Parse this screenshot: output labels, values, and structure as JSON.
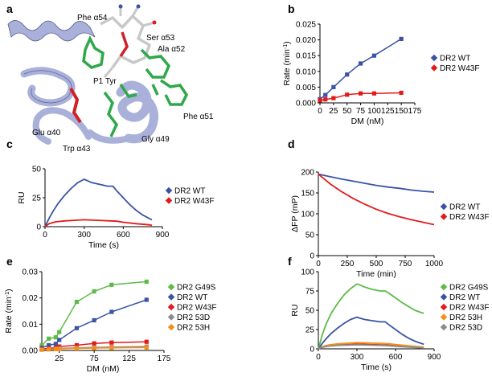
{
  "panel_labels": [
    "a",
    "b",
    "c",
    "d",
    "e",
    "f"
  ],
  "structure": {
    "labels": [
      "Phe α54",
      "Ser α53",
      "Ala α52",
      "P1 Tyr",
      "Glu α40",
      "Trp α43",
      "Gly α49",
      "Phe α51"
    ],
    "colors": {
      "ribbon": "#a9b0da",
      "green": "#2fa84a",
      "red": "#cf2027",
      "grey": "#d3d3d3"
    }
  },
  "chart_data": [
    {
      "id": "b",
      "type": "line",
      "xlabel": "DM (nM)",
      "ylabel": "Rate (min",
      "ylabel_sup": "-1",
      "ylabel_close": ")",
      "xlim": [
        0,
        175
      ],
      "ylim": [
        0,
        0.025
      ],
      "xticks": [
        "0",
        "25",
        "50",
        "75",
        "100",
        "125",
        "150",
        "175"
      ],
      "yticks": [
        "0.000",
        "0.005",
        "0.010",
        "0.015",
        "0.020",
        "0.025"
      ],
      "legend_position": "right",
      "series": [
        {
          "name": "DR2 WT",
          "color": "#3a53a4",
          "marker": "square",
          "x": [
            0,
            10,
            25,
            50,
            75,
            100,
            150
          ],
          "y": [
            0.0012,
            0.0025,
            0.005,
            0.009,
            0.0125,
            0.015,
            0.0203
          ]
        },
        {
          "name": "DR2 W43F",
          "color": "#e31a1c",
          "marker": "square",
          "x": [
            0,
            10,
            25,
            50,
            75,
            100,
            150
          ],
          "y": [
            0.0008,
            0.0011,
            0.0015,
            0.0026,
            0.003,
            0.003,
            0.0032
          ]
        }
      ]
    },
    {
      "id": "c",
      "type": "line",
      "xlabel": "Time (s)",
      "ylabel": "RU",
      "xlim": [
        0,
        900
      ],
      "ylim": [
        0,
        50
      ],
      "xticks": [
        "0",
        "300",
        "600",
        "900"
      ],
      "yticks": [
        "0",
        "25",
        "50"
      ],
      "legend_position": "right",
      "series": [
        {
          "name": "DR2 WT",
          "color": "#3a53a4",
          "x": [
            0,
            30,
            60,
            100,
            150,
            200,
            250,
            300,
            320,
            360,
            420,
            480,
            520,
            550,
            600,
            650,
            700,
            750,
            800,
            820
          ],
          "y": [
            0,
            7,
            13,
            20,
            27,
            33,
            38,
            41,
            40,
            38,
            36.5,
            35,
            35,
            31,
            25,
            19,
            14,
            10,
            7,
            6
          ]
        },
        {
          "name": "DR2 W43F",
          "color": "#e31a1c",
          "x": [
            0,
            30,
            80,
            150,
            250,
            300,
            400,
            500,
            550,
            600,
            700,
            800,
            820
          ],
          "y": [
            0,
            2.5,
            4.2,
            5,
            5.6,
            6,
            5.5,
            5,
            4.7,
            3.8,
            2.6,
            1.6,
            1.2
          ]
        }
      ]
    },
    {
      "id": "d",
      "type": "line",
      "xlabel": "Time (min)",
      "ylabel": "ΔFP (mP)",
      "xlim": [
        0,
        1000
      ],
      "ylim": [
        0,
        200
      ],
      "xticks": [
        "0",
        "250",
        "500",
        "750",
        "1000"
      ],
      "yticks": [
        "0",
        "50",
        "100",
        "150",
        "200"
      ],
      "legend_position": "right",
      "series": [
        {
          "name": "DR2 WT",
          "color": "#3a53a4",
          "x": [
            0,
            100,
            200,
            300,
            400,
            500,
            600,
            700,
            800,
            900,
            1000
          ],
          "y": [
            195,
            189,
            183,
            178,
            173,
            168,
            164,
            161,
            157,
            154,
            152
          ]
        },
        {
          "name": "DR2 W43F",
          "color": "#e31a1c",
          "x": [
            0,
            100,
            200,
            300,
            400,
            500,
            600,
            700,
            800,
            900,
            1000
          ],
          "y": [
            195,
            172,
            153,
            137,
            123,
            111,
            101,
            93,
            86,
            80,
            74
          ]
        }
      ]
    },
    {
      "id": "e",
      "type": "line",
      "xlabel": "DM (nM)",
      "ylabel": "Rate (min",
      "ylabel_sup": "-1",
      "ylabel_close": ")",
      "xlim": [
        0,
        175
      ],
      "ylim": [
        0,
        0.03
      ],
      "xticks": [
        "25",
        "75",
        "125",
        "175"
      ],
      "yticks": [
        "0.00",
        "0.01",
        "0.02",
        "0.03"
      ],
      "legend_position": "right",
      "series": [
        {
          "name": "DR2 G49S",
          "color": "#5dbb46",
          "marker": "square",
          "x": [
            0,
            10,
            20,
            25,
            50,
            75,
            100,
            150
          ],
          "y": [
            0.002,
            0.0045,
            0.005,
            0.007,
            0.0185,
            0.0225,
            0.025,
            0.0262
          ]
        },
        {
          "name": "DR2 WT",
          "color": "#3a53a4",
          "marker": "square",
          "x": [
            0,
            10,
            20,
            25,
            50,
            75,
            100,
            150
          ],
          "y": [
            0.001,
            0.002,
            0.0025,
            0.004,
            0.0085,
            0.0115,
            0.0147,
            0.0193
          ]
        },
        {
          "name": "DR2 W43F",
          "color": "#e31a1c",
          "marker": "square",
          "x": [
            0,
            10,
            20,
            25,
            50,
            75,
            100,
            150
          ],
          "y": [
            0.0005,
            0.0009,
            0.001,
            0.0015,
            0.002,
            0.0027,
            0.003,
            0.0033
          ]
        },
        {
          "name": "DR2 53D",
          "color": "#8c8c8c",
          "marker": "square",
          "x": [
            0,
            10,
            20,
            25,
            50,
            75,
            100,
            150
          ],
          "y": [
            0.0003,
            0.0005,
            0.0006,
            0.0008,
            0.001,
            0.0012,
            0.0013,
            0.0015
          ]
        },
        {
          "name": "DR2 53H",
          "color": "#f39019",
          "marker": "square",
          "x": [
            0,
            10,
            20,
            25,
            50,
            75,
            100,
            150
          ],
          "y": [
            0.0003,
            0.0004,
            0.0005,
            0.0006,
            0.0008,
            0.0009,
            0.001,
            0.0011
          ]
        }
      ]
    },
    {
      "id": "f",
      "type": "line",
      "xlabel": "Time (s)",
      "ylabel": "RU",
      "xlim": [
        0,
        900
      ],
      "ylim": [
        0,
        100
      ],
      "xticks": [
        "0",
        "300",
        "600",
        "900"
      ],
      "yticks": [
        "0",
        "25",
        "50",
        "75",
        "100"
      ],
      "legend_position": "right",
      "series": [
        {
          "name": "DR2 G49S",
          "color": "#5dbb46",
          "x": [
            0,
            30,
            60,
            100,
            150,
            200,
            250,
            300,
            320,
            360,
            420,
            480,
            520,
            550,
            600,
            650,
            700,
            750,
            800,
            820
          ],
          "y": [
            0,
            18,
            32,
            46,
            59,
            70,
            78,
            84,
            83,
            80,
            77,
            75,
            75,
            72,
            66,
            60,
            55,
            50,
            47,
            46
          ]
        },
        {
          "name": "DR2 WT",
          "color": "#3a53a4",
          "x": [
            0,
            30,
            60,
            100,
            150,
            200,
            250,
            300,
            320,
            360,
            420,
            480,
            520,
            550,
            600,
            650,
            700,
            750,
            800,
            820
          ],
          "y": [
            0,
            7,
            13,
            20,
            27,
            33,
            38,
            41,
            40,
            38,
            36.5,
            35,
            35,
            31,
            25,
            19,
            14,
            10,
            7,
            6
          ]
        },
        {
          "name": "DR2 W43F",
          "color": "#e31a1c",
          "x": [
            0,
            30,
            80,
            150,
            250,
            300,
            400,
            500,
            550,
            600,
            700,
            800,
            820
          ],
          "y": [
            0,
            2.5,
            4.2,
            5,
            5.6,
            6,
            5.5,
            5,
            4.7,
            3.8,
            2.6,
            1.6,
            1.2
          ]
        },
        {
          "name": "DR2 53H",
          "color": "#f39019",
          "x": [
            0,
            30,
            80,
            150,
            250,
            300,
            400,
            500,
            550,
            600,
            700,
            800,
            820
          ],
          "y": [
            0,
            3,
            5,
            6.5,
            7.5,
            8,
            7.5,
            7,
            6.6,
            5.5,
            4,
            2.6,
            2.2
          ]
        },
        {
          "name": "DR2 53D",
          "color": "#8c8c8c",
          "x": [
            0,
            30,
            80,
            150,
            250,
            300,
            400,
            500,
            550,
            600,
            700,
            800,
            820
          ],
          "y": [
            0,
            2,
            3.5,
            4.5,
            5,
            5.2,
            4.8,
            4.4,
            4.1,
            3.3,
            2.3,
            1.4,
            1
          ]
        }
      ]
    }
  ]
}
